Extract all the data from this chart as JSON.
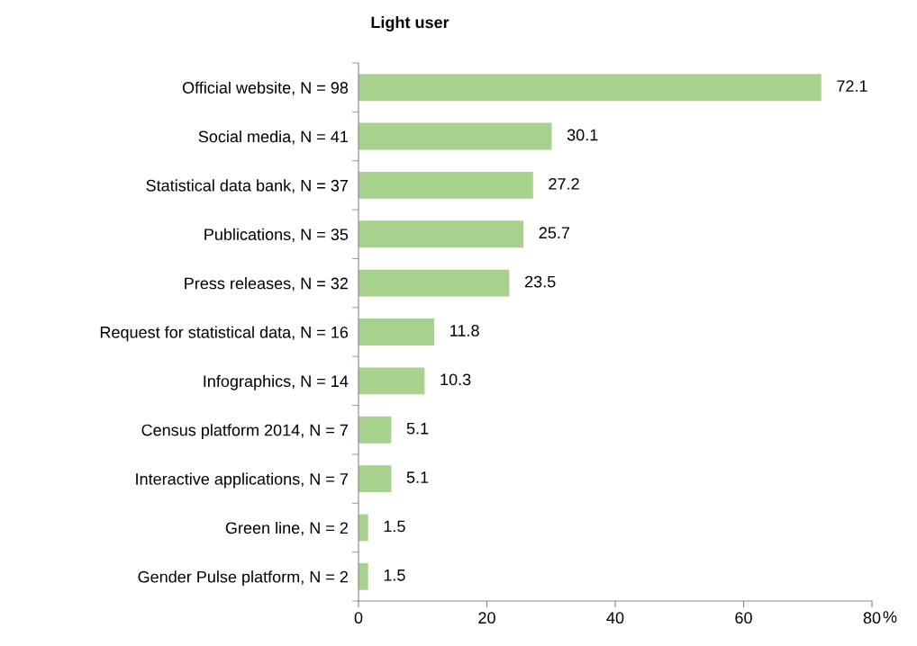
{
  "chart_data": {
    "type": "bar",
    "orientation": "horizontal",
    "title": "Light user",
    "xlabel": "%",
    "categories": [
      "Official website, N = 98",
      "Social media, N = 41",
      "Statistical data bank, N = 37",
      "Publications, N = 35",
      "Press releases, N = 32",
      "Request for statistical data, N = 16",
      "Infographics, N = 14",
      "Census platform 2014, N = 7",
      "Interactive applications, N = 7",
      "Green line, N = 2",
      "Gender Pulse platform, N = 2"
    ],
    "values": [
      72.1,
      30.1,
      27.2,
      25.7,
      23.5,
      11.8,
      10.3,
      5.1,
      5.1,
      1.5,
      1.5
    ],
    "color": "#a9d18e",
    "data_labels": true,
    "xlim": [
      0,
      80
    ],
    "xticks": [
      0,
      20,
      40,
      60,
      80
    ],
    "grid": false,
    "legend": false
  }
}
